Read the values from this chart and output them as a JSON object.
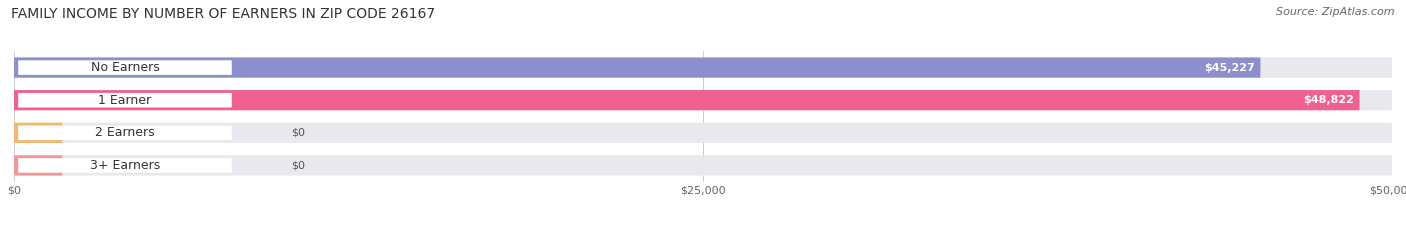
{
  "title": "FAMILY INCOME BY NUMBER OF EARNERS IN ZIP CODE 26167",
  "source": "Source: ZipAtlas.com",
  "categories": [
    "No Earners",
    "1 Earner",
    "2 Earners",
    "3+ Earners"
  ],
  "values": [
    45227,
    48822,
    0,
    0
  ],
  "bar_colors": [
    "#8b8fcc",
    "#f06090",
    "#f0b870",
    "#f09898"
  ],
  "bar_bg_color": "#e8e8ee",
  "label_bg_color": "#ffffff",
  "xlim": [
    0,
    50000
  ],
  "xticks": [
    0,
    25000,
    50000
  ],
  "xticklabels": [
    "$0",
    "$25,000",
    "$50,000"
  ],
  "figsize": [
    14.06,
    2.33
  ],
  "dpi": 100,
  "title_fontsize": 10,
  "source_fontsize": 8,
  "label_fontsize": 9,
  "value_fontsize": 8,
  "tick_fontsize": 8,
  "bar_height": 0.62,
  "background_color": "#ffffff",
  "grid_color": "#cccccc",
  "bar_gap": 0.18
}
